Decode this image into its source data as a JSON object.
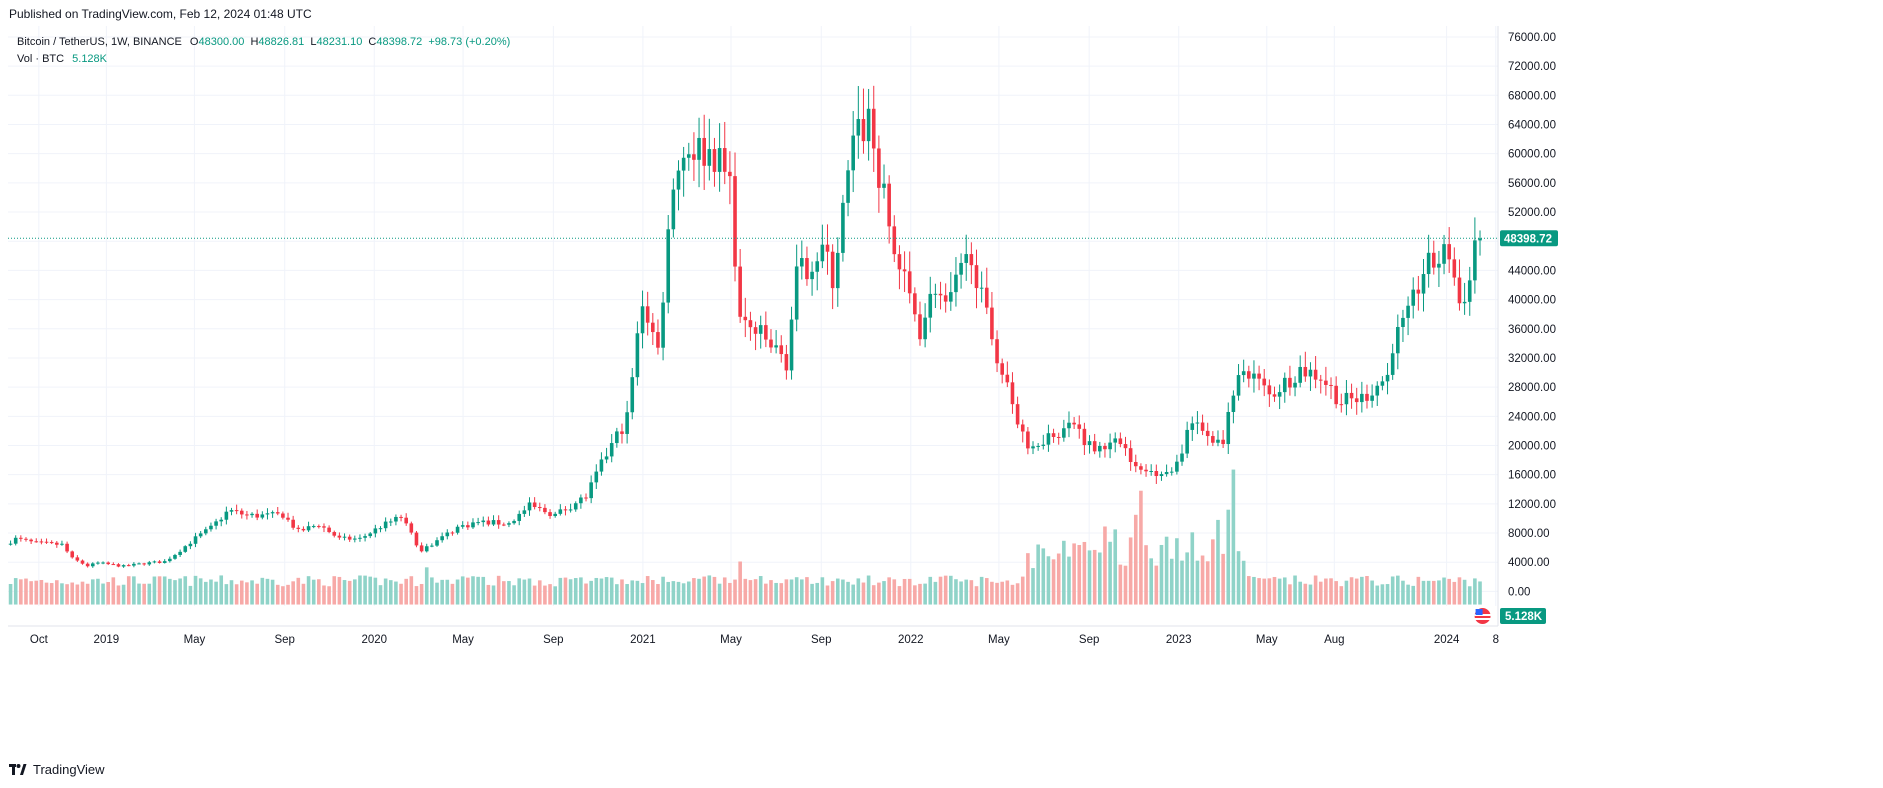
{
  "header": {
    "published": "Published on TradingView.com, Feb 12, 2024 01:48 UTC"
  },
  "legend": {
    "symbol": "Bitcoin / TetherUS, 1W, BINANCE",
    "o_label": "O",
    "o": "48300.00",
    "h_label": "H",
    "h": "48826.81",
    "l_label": "L",
    "l": "48231.10",
    "c_label": "C",
    "c": "48398.72",
    "change": "+98.73 (+0.20%)",
    "vol_label": "Vol · BTC",
    "vol": "5.128K"
  },
  "footer": {
    "brand": "TradingView"
  },
  "colors": {
    "up": "#089981",
    "down": "#f23645",
    "vol_up": "#8fd3c8",
    "vol_down": "#f7a9a7",
    "grid": "#f0f3fa",
    "last_price_line": "#089981"
  },
  "chart_data": {
    "type": "candlestick",
    "symbol": "Bitcoin / TetherUS",
    "interval": "1W",
    "exchange": "BINANCE",
    "y_axis": {
      "ylim": [
        -2000,
        77500
      ],
      "ticks": [
        0,
        4000,
        8000,
        12000,
        16000,
        20000,
        24000,
        28000,
        32000,
        36000,
        40000,
        44000,
        48000,
        52000,
        56000,
        60000,
        64000,
        68000,
        72000,
        76000
      ],
      "tick_labels": [
        "0.00",
        "4000.00",
        "8000.00",
        "12000.00",
        "16000.00",
        "20000.00",
        "24000.00",
        "28000.00",
        "32000.00",
        "36000.00",
        "40000.00",
        "44000.00",
        "48000.00",
        "52000.00",
        "56000.00",
        "60000.00",
        "64000.00",
        "68000.00",
        "72000.00",
        "76000.00"
      ]
    },
    "x_axis": {
      "labels": [
        {
          "label": "Oct",
          "date": "2018-10-01"
        },
        {
          "label": "2019",
          "date": "2019-01-01"
        },
        {
          "label": "May",
          "date": "2019-05-01"
        },
        {
          "label": "Sep",
          "date": "2019-09-01"
        },
        {
          "label": "2020",
          "date": "2020-01-01"
        },
        {
          "label": "May",
          "date": "2020-05-01"
        },
        {
          "label": "Sep",
          "date": "2020-09-01"
        },
        {
          "label": "2021",
          "date": "2021-01-01"
        },
        {
          "label": "May",
          "date": "2021-05-01"
        },
        {
          "label": "Sep",
          "date": "2021-09-01"
        },
        {
          "label": "2022",
          "date": "2022-01-01"
        },
        {
          "label": "May",
          "date": "2022-05-01"
        },
        {
          "label": "Sep",
          "date": "2022-09-01"
        },
        {
          "label": "2023",
          "date": "2023-01-01"
        },
        {
          "label": "May",
          "date": "2023-05-01"
        },
        {
          "label": "Aug",
          "date": "2023-08-01"
        },
        {
          "label": "2024",
          "date": "2024-01-01"
        },
        {
          "label": "8",
          "date": "2024-03-08"
        }
      ],
      "range": [
        "2018-08-20",
        "2024-03-11"
      ]
    },
    "last_price": 48398.72,
    "last_price_label": "48398.72",
    "last_volume_label": "5.128K",
    "price_path": [
      [
        "2018-08-20",
        6500
      ],
      [
        "2018-09-03",
        7200
      ],
      [
        "2018-10-01",
        6600
      ],
      [
        "2018-11-05",
        6400
      ],
      [
        "2018-11-19",
        4500
      ],
      [
        "2018-12-10",
        3500
      ],
      [
        "2018-12-24",
        3900
      ],
      [
        "2019-01-28",
        3450
      ],
      [
        "2019-02-25",
        3850
      ],
      [
        "2019-03-25",
        4100
      ],
      [
        "2019-04-08",
        5100
      ],
      [
        "2019-05-06",
        7300
      ],
      [
        "2019-05-27",
        8700
      ],
      [
        "2019-06-17",
        10800
      ],
      [
        "2019-06-24",
        11000
      ],
      [
        "2019-07-15",
        10400
      ],
      [
        "2019-08-12",
        10400
      ],
      [
        "2019-09-02",
        10500
      ],
      [
        "2019-09-23",
        8200
      ],
      [
        "2019-10-21",
        9200
      ],
      [
        "2019-11-18",
        7200
      ],
      [
        "2019-12-16",
        7200
      ],
      [
        "2020-01-13",
        8900
      ],
      [
        "2020-02-10",
        10200
      ],
      [
        "2020-03-09",
        5400
      ],
      [
        "2020-03-23",
        6500
      ],
      [
        "2020-04-27",
        8800
      ],
      [
        "2020-05-25",
        9500
      ],
      [
        "2020-07-06",
        9300
      ],
      [
        "2020-08-03",
        11700
      ],
      [
        "2020-09-07",
        10500
      ],
      [
        "2020-10-19",
        13000
      ],
      [
        "2020-11-16",
        18800
      ],
      [
        "2020-12-14",
        23800
      ],
      [
        "2021-01-04",
        40000
      ],
      [
        "2021-01-25",
        33000
      ],
      [
        "2021-02-15",
        57000
      ],
      [
        "2021-03-08",
        61000
      ],
      [
        "2021-04-12",
        60000
      ],
      [
        "2021-05-03",
        56000
      ],
      [
        "2021-05-17",
        37000
      ],
      [
        "2021-06-14",
        35000
      ],
      [
        "2021-07-19",
        31500
      ],
      [
        "2021-08-02",
        43000
      ],
      [
        "2021-09-06",
        47000
      ],
      [
        "2021-09-20",
        42800
      ],
      [
        "2021-10-18",
        61000
      ],
      [
        "2021-11-08",
        65000
      ],
      [
        "2021-11-22",
        57000
      ],
      [
        "2021-12-13",
        46500
      ],
      [
        "2022-01-17",
        36000
      ],
      [
        "2022-02-07",
        42000
      ],
      [
        "2022-02-21",
        38500
      ],
      [
        "2022-03-28",
        46800
      ],
      [
        "2022-04-11",
        40000
      ],
      [
        "2022-05-09",
        30000
      ],
      [
        "2022-06-13",
        19500
      ],
      [
        "2022-07-04",
        21000
      ],
      [
        "2022-08-15",
        23000
      ],
      [
        "2022-09-05",
        20000
      ],
      [
        "2022-10-24",
        20500
      ],
      [
        "2022-11-07",
        16500
      ],
      [
        "2022-12-26",
        16500
      ],
      [
        "2023-01-23",
        23000
      ],
      [
        "2023-03-06",
        20000
      ],
      [
        "2023-03-20",
        28000
      ],
      [
        "2023-04-10",
        30300
      ],
      [
        "2023-05-08",
        26800
      ],
      [
        "2023-06-19",
        30500
      ],
      [
        "2023-07-17",
        29500
      ],
      [
        "2023-08-14",
        26000
      ],
      [
        "2023-09-11",
        26500
      ],
      [
        "2023-10-16",
        29500
      ],
      [
        "2023-10-23",
        34000
      ],
      [
        "2023-11-13",
        37500
      ],
      [
        "2023-12-04",
        44000
      ],
      [
        "2024-01-08",
        46500
      ],
      [
        "2024-01-22",
        39500
      ],
      [
        "2024-02-05",
        42500
      ],
      [
        "2024-02-12",
        48398
      ]
    ],
    "volume_spikes": [
      {
        "date": "2020-03-09",
        "value": 3300
      },
      {
        "date": "2021-05-10",
        "value": 4100
      },
      {
        "date": "2022-05-09",
        "value": 1500
      },
      {
        "date": "2022-06-13",
        "value": 3200
      },
      {
        "date": "2022-09-19",
        "value": 8900
      },
      {
        "date": "2022-10-03",
        "value": 8500
      },
      {
        "date": "2022-10-31",
        "value": 10500
      },
      {
        "date": "2022-11-07",
        "value": 13800
      },
      {
        "date": "2023-01-16",
        "value": 8100
      },
      {
        "date": "2023-02-20",
        "value": 9800
      },
      {
        "date": "2023-03-06",
        "value": 11200
      },
      {
        "date": "2023-03-13",
        "value": 16700
      },
      {
        "date": "2023-03-27",
        "value": 4200
      }
    ]
  }
}
